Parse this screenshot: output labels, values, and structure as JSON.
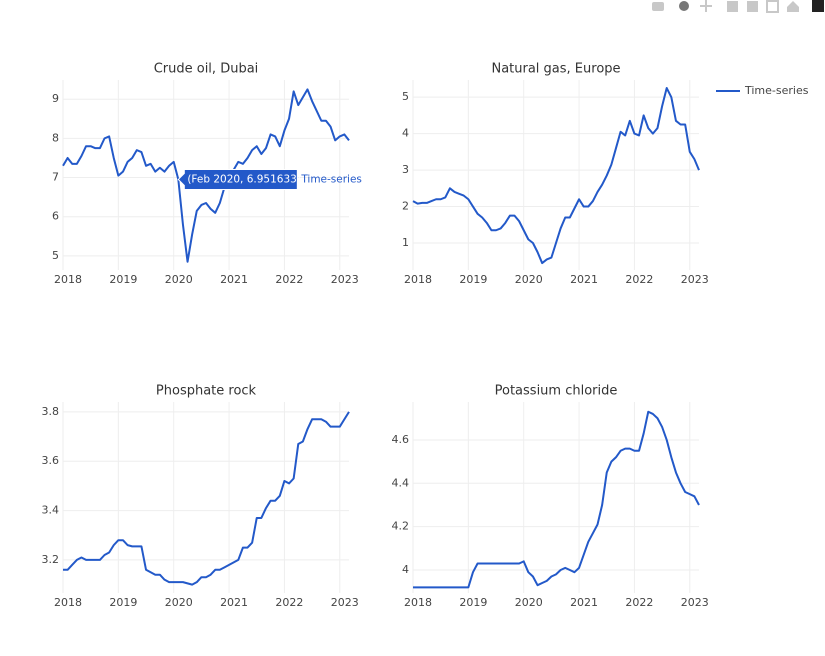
{
  "chart_data": [
    {
      "type": "line",
      "title": "Crude oil, Dubai",
      "x": [
        "2018-01",
        "2018-02",
        "2018-03",
        "2018-04",
        "2018-05",
        "2018-06",
        "2018-07",
        "2018-08",
        "2018-09",
        "2018-10",
        "2018-11",
        "2018-12",
        "2019-01",
        "2019-02",
        "2019-03",
        "2019-04",
        "2019-05",
        "2019-06",
        "2019-07",
        "2019-08",
        "2019-09",
        "2019-10",
        "2019-11",
        "2019-12",
        "2020-01",
        "2020-02",
        "2020-03",
        "2020-04",
        "2020-05",
        "2020-06",
        "2020-07",
        "2020-08",
        "2020-09",
        "2020-10",
        "2020-11",
        "2020-12",
        "2021-01",
        "2021-02",
        "2021-03",
        "2021-04",
        "2021-05",
        "2021-06",
        "2021-07",
        "2021-08",
        "2021-09",
        "2021-10",
        "2021-11",
        "2021-12",
        "2022-01",
        "2022-02",
        "2022-03",
        "2022-04",
        "2022-05",
        "2022-06",
        "2022-07",
        "2022-08",
        "2022-09",
        "2022-10",
        "2022-11",
        "2022-12",
        "2023-01",
        "2023-02",
        "2023-03"
      ],
      "series": [
        {
          "name": "Time-series",
          "color": "#2359c9",
          "values": [
            7.3,
            7.5,
            7.35,
            7.35,
            7.55,
            7.8,
            7.8,
            7.75,
            7.75,
            8.0,
            8.05,
            7.5,
            7.05,
            7.15,
            7.4,
            7.5,
            7.7,
            7.65,
            7.3,
            7.35,
            7.15,
            7.25,
            7.15,
            7.3,
            7.4,
            6.951633,
            5.8,
            4.85,
            5.55,
            6.15,
            6.3,
            6.35,
            6.2,
            6.1,
            6.35,
            6.75,
            7.0,
            7.2,
            7.4,
            7.35,
            7.5,
            7.7,
            7.8,
            7.6,
            7.75,
            8.1,
            8.05,
            7.8,
            8.2,
            8.5,
            9.2,
            8.85,
            9.05,
            9.25,
            8.95,
            8.7,
            8.45,
            8.45,
            8.3,
            7.95,
            8.05,
            8.1,
            7.95
          ]
        }
      ],
      "hover": {
        "index": 25,
        "label": "(Feb 2020, 6.951633)"
      },
      "xlim": [
        "2018-01",
        "2023-03"
      ],
      "xticks": [
        {
          "value": "2018-01",
          "label": "2018"
        },
        {
          "value": "2019-01",
          "label": "2019"
        },
        {
          "value": "2020-01",
          "label": "2020"
        },
        {
          "value": "2021-01",
          "label": "2021"
        },
        {
          "value": "2022-01",
          "label": "2022"
        },
        {
          "value": "2023-01",
          "label": "2023"
        }
      ],
      "ylim": [
        4.64,
        9.49
      ],
      "yticks": [
        5,
        6,
        7,
        8,
        9
      ],
      "grid": true,
      "legend": "right"
    },
    {
      "type": "line",
      "title": "Natural gas, Europe",
      "x": [
        "2018-01",
        "2018-02",
        "2018-03",
        "2018-04",
        "2018-05",
        "2018-06",
        "2018-07",
        "2018-08",
        "2018-09",
        "2018-10",
        "2018-11",
        "2018-12",
        "2019-01",
        "2019-02",
        "2019-03",
        "2019-04",
        "2019-05",
        "2019-06",
        "2019-07",
        "2019-08",
        "2019-09",
        "2019-10",
        "2019-11",
        "2019-12",
        "2020-01",
        "2020-02",
        "2020-03",
        "2020-04",
        "2020-05",
        "2020-06",
        "2020-07",
        "2020-08",
        "2020-09",
        "2020-10",
        "2020-11",
        "2020-12",
        "2021-01",
        "2021-02",
        "2021-03",
        "2021-04",
        "2021-05",
        "2021-06",
        "2021-07",
        "2021-08",
        "2021-09",
        "2021-10",
        "2021-11",
        "2021-12",
        "2022-01",
        "2022-02",
        "2022-03",
        "2022-04",
        "2022-05",
        "2022-06",
        "2022-07",
        "2022-08",
        "2022-09",
        "2022-10",
        "2022-11",
        "2022-12",
        "2023-01",
        "2023-02",
        "2023-03"
      ],
      "series": [
        {
          "name": "Time-series",
          "color": "#2359c9",
          "values": [
            2.15,
            2.08,
            2.1,
            2.1,
            2.15,
            2.2,
            2.2,
            2.25,
            2.5,
            2.4,
            2.35,
            2.3,
            2.2,
            2.0,
            1.8,
            1.7,
            1.55,
            1.35,
            1.35,
            1.4,
            1.55,
            1.75,
            1.75,
            1.6,
            1.35,
            1.1,
            1.0,
            0.75,
            0.45,
            0.55,
            0.6,
            1.0,
            1.4,
            1.7,
            1.7,
            1.95,
            2.2,
            2.0,
            2.0,
            2.15,
            2.4,
            2.6,
            2.85,
            3.15,
            3.6,
            4.05,
            3.95,
            4.35,
            4.0,
            3.95,
            4.5,
            4.15,
            4.0,
            4.15,
            4.75,
            5.25,
            5.0,
            4.35,
            4.25,
            4.25,
            3.5,
            3.3,
            3.0
          ]
        }
      ],
      "xlim": [
        "2018-01",
        "2023-03"
      ],
      "xticks": [
        {
          "value": "2018-01",
          "label": "2018"
        },
        {
          "value": "2019-01",
          "label": "2019"
        },
        {
          "value": "2020-01",
          "label": "2020"
        },
        {
          "value": "2021-01",
          "label": "2021"
        },
        {
          "value": "2022-01",
          "label": "2022"
        },
        {
          "value": "2023-01",
          "label": "2023"
        }
      ],
      "ylim": [
        0.26,
        5.47
      ],
      "yticks": [
        1,
        2,
        3,
        4,
        5
      ],
      "grid": true
    },
    {
      "type": "line",
      "title": "Phosphate rock",
      "x": [
        "2018-01",
        "2018-02",
        "2018-03",
        "2018-04",
        "2018-05",
        "2018-06",
        "2018-07",
        "2018-08",
        "2018-09",
        "2018-10",
        "2018-11",
        "2018-12",
        "2019-01",
        "2019-02",
        "2019-03",
        "2019-04",
        "2019-05",
        "2019-06",
        "2019-07",
        "2019-08",
        "2019-09",
        "2019-10",
        "2019-11",
        "2019-12",
        "2020-01",
        "2020-02",
        "2020-03",
        "2020-04",
        "2020-05",
        "2020-06",
        "2020-07",
        "2020-08",
        "2020-09",
        "2020-10",
        "2020-11",
        "2020-12",
        "2021-01",
        "2021-02",
        "2021-03",
        "2021-04",
        "2021-05",
        "2021-06",
        "2021-07",
        "2021-08",
        "2021-09",
        "2021-10",
        "2021-11",
        "2021-12",
        "2022-01",
        "2022-02",
        "2022-03",
        "2022-04",
        "2022-05",
        "2022-06",
        "2022-07",
        "2022-08",
        "2022-09",
        "2022-10",
        "2022-11",
        "2022-12",
        "2023-01",
        "2023-02",
        "2023-03"
      ],
      "series": [
        {
          "name": "Time-series",
          "color": "#2359c9",
          "values": [
            3.16,
            3.16,
            3.18,
            3.2,
            3.21,
            3.2,
            3.2,
            3.2,
            3.2,
            3.22,
            3.23,
            3.26,
            3.28,
            3.28,
            3.26,
            3.255,
            3.255,
            3.255,
            3.16,
            3.15,
            3.14,
            3.14,
            3.12,
            3.11,
            3.11,
            3.11,
            3.11,
            3.105,
            3.1,
            3.11,
            3.13,
            3.13,
            3.14,
            3.16,
            3.16,
            3.17,
            3.18,
            3.19,
            3.2,
            3.25,
            3.25,
            3.27,
            3.37,
            3.37,
            3.41,
            3.44,
            3.44,
            3.46,
            3.52,
            3.51,
            3.53,
            3.67,
            3.68,
            3.73,
            3.77,
            3.77,
            3.77,
            3.76,
            3.74,
            3.74,
            3.74,
            3.77,
            3.8
          ]
        }
      ],
      "xlim": [
        "2018-01",
        "2023-03"
      ],
      "xticks": [
        {
          "value": "2018-01",
          "label": "2018"
        },
        {
          "value": "2019-01",
          "label": "2019"
        },
        {
          "value": "2020-01",
          "label": "2020"
        },
        {
          "value": "2021-01",
          "label": "2021"
        },
        {
          "value": "2022-01",
          "label": "2022"
        },
        {
          "value": "2023-01",
          "label": "2023"
        }
      ],
      "ylim": [
        3.066,
        3.84
      ],
      "yticks": [
        3.2,
        3.4,
        3.6,
        3.8
      ],
      "grid": true
    },
    {
      "type": "line",
      "title": "Potassium chloride",
      "x": [
        "2018-01",
        "2018-02",
        "2018-03",
        "2018-04",
        "2018-05",
        "2018-06",
        "2018-07",
        "2018-08",
        "2018-09",
        "2018-10",
        "2018-11",
        "2018-12",
        "2019-01",
        "2019-02",
        "2019-03",
        "2019-04",
        "2019-05",
        "2019-06",
        "2019-07",
        "2019-08",
        "2019-09",
        "2019-10",
        "2019-11",
        "2019-12",
        "2020-01",
        "2020-02",
        "2020-03",
        "2020-04",
        "2020-05",
        "2020-06",
        "2020-07",
        "2020-08",
        "2020-09",
        "2020-10",
        "2020-11",
        "2020-12",
        "2021-01",
        "2021-02",
        "2021-03",
        "2021-04",
        "2021-05",
        "2021-06",
        "2021-07",
        "2021-08",
        "2021-09",
        "2021-10",
        "2021-11",
        "2021-12",
        "2022-01",
        "2022-02",
        "2022-03",
        "2022-04",
        "2022-05",
        "2022-06",
        "2022-07",
        "2022-08",
        "2022-09",
        "2022-10",
        "2022-11",
        "2022-12",
        "2023-01",
        "2023-02",
        "2023-03"
      ],
      "series": [
        {
          "name": "Time-series",
          "color": "#2359c9",
          "values": [
            3.92,
            3.92,
            3.92,
            3.92,
            3.92,
            3.92,
            3.92,
            3.92,
            3.92,
            3.92,
            3.92,
            3.92,
            3.92,
            3.99,
            4.03,
            4.03,
            4.03,
            4.03,
            4.03,
            4.03,
            4.03,
            4.03,
            4.03,
            4.03,
            4.04,
            3.99,
            3.97,
            3.93,
            3.94,
            3.95,
            3.97,
            3.98,
            4.0,
            4.01,
            4.0,
            3.99,
            4.01,
            4.07,
            4.13,
            4.17,
            4.21,
            4.3,
            4.45,
            4.5,
            4.52,
            4.55,
            4.56,
            4.56,
            4.55,
            4.55,
            4.63,
            4.73,
            4.72,
            4.7,
            4.66,
            4.6,
            4.52,
            4.45,
            4.4,
            4.36,
            4.35,
            4.34,
            4.3
          ]
        }
      ],
      "xlim": [
        "2018-01",
        "2023-03"
      ],
      "xticks": [
        {
          "value": "2018-01",
          "label": "2018"
        },
        {
          "value": "2019-01",
          "label": "2019"
        },
        {
          "value": "2020-01",
          "label": "2020"
        },
        {
          "value": "2021-01",
          "label": "2021"
        },
        {
          "value": "2022-01",
          "label": "2022"
        },
        {
          "value": "2023-01",
          "label": "2023"
        }
      ],
      "ylim": [
        3.894,
        4.775
      ],
      "yticks": [
        4,
        4.2,
        4.4,
        4.6
      ],
      "grid": true
    }
  ]
}
